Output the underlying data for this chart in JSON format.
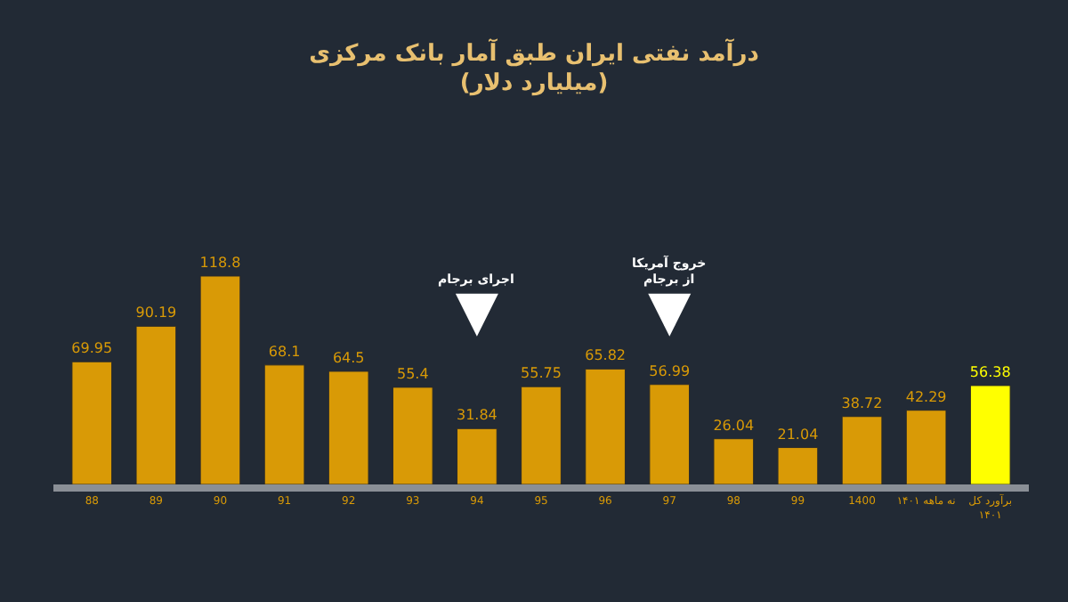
{
  "chart_data": {
    "type": "bar",
    "title": "درآمد نفتی ایران طبق آمار بانک مرکزی",
    "subtitle": "(میلیارد دلار)",
    "categories": [
      "88",
      "89",
      "90",
      "91",
      "92",
      "93",
      "94",
      "95",
      "96",
      "97",
      "98",
      "99",
      "1400",
      "نه ماهه ۱۴۰۱",
      "برآورد کل\n۱۴۰۱"
    ],
    "values": [
      69.95,
      90.19,
      118.8,
      68.1,
      64.5,
      55.4,
      31.84,
      55.75,
      65.82,
      56.99,
      26.04,
      21.04,
      38.72,
      42.29,
      56.38
    ],
    "colors": [
      "#d99a06",
      "#d99a06",
      "#d99a06",
      "#d99a06",
      "#d99a06",
      "#d99a06",
      "#d99a06",
      "#d99a06",
      "#d99a06",
      "#d99a06",
      "#d99a06",
      "#d99a06",
      "#d99a06",
      "#d99a06",
      "#ffff00"
    ],
    "data_labels": true,
    "ref_lines": [
      {
        "axis": "x",
        "value": "94",
        "label": "اجرای برجام",
        "color": "#ffffff"
      },
      {
        "axis": "x",
        "value": "97",
        "label": "خروج آمریکا\nاز برجام",
        "color": "#ffffff"
      }
    ],
    "grid": false,
    "legend": false
  }
}
